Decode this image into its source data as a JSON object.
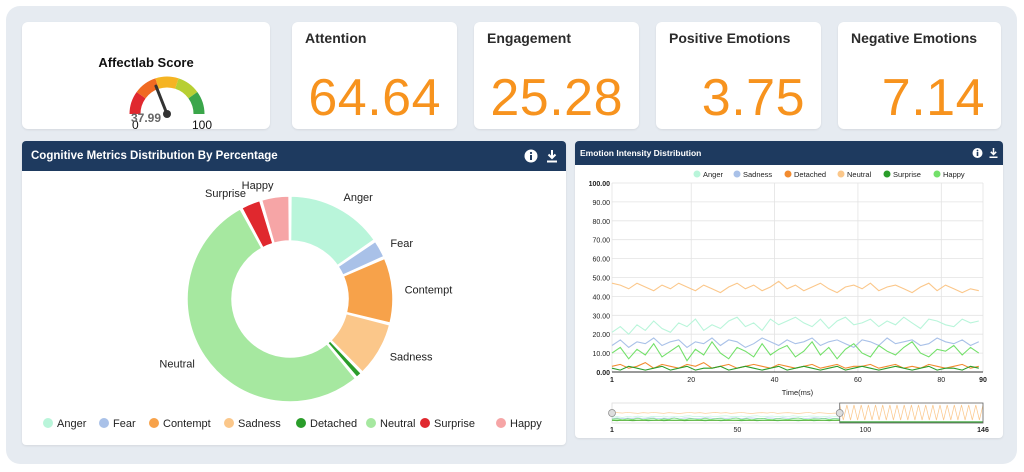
{
  "score_card": {
    "title": "Affectlab Score",
    "min": "0",
    "max": "100",
    "value": "37.99",
    "gauge_fraction": 0.38
  },
  "kpis": [
    {
      "title": "Attention",
      "value": "64.64"
    },
    {
      "title": "Engagement",
      "value": "25.28"
    },
    {
      "title": "Positive Emotions",
      "value": "3.75"
    },
    {
      "title": "Negative Emotions",
      "value": "7.14"
    }
  ],
  "donut_panel": {
    "title": "Cognitive Metrics Distribution By Percentage",
    "icons": [
      "info-icon",
      "download-icon"
    ]
  },
  "emotion_panel": {
    "title": "Emotion Intensity Distribution",
    "icons": [
      "info-icon",
      "download-icon"
    ]
  },
  "colors": {
    "header": "#1e3a5f",
    "accent": "#f7931e"
  },
  "chart_data": [
    {
      "type": "pie",
      "variant": "donut",
      "categories": [
        "Anger",
        "Fear",
        "Contempt",
        "Sadness",
        "Detached",
        "Neutral",
        "Surprise",
        "Happy"
      ],
      "values": [
        15.4,
        3.0,
        10.5,
        8.8,
        1.2,
        53.2,
        3.3,
        4.6
      ],
      "colors": [
        "#b9f5da",
        "#a9c1e8",
        "#f7a24a",
        "#fbc78a",
        "#2a9d2a",
        "#a6e8a0",
        "#e0282e",
        "#f6a5a6"
      ],
      "slice_labels": [
        "Anger",
        "Fear",
        "Contempt",
        "Sadness",
        "",
        "Neutral",
        "Surprise",
        "Happy"
      ],
      "legend": [
        "Anger",
        "Fear",
        "Contempt",
        "Sadness",
        "Detached",
        "Neutral",
        "Surprise",
        "Happy"
      ],
      "legend_position": "bottom"
    },
    {
      "type": "line",
      "x": [
        1,
        3,
        5,
        7,
        9,
        11,
        13,
        15,
        17,
        19,
        21,
        23,
        25,
        27,
        29,
        31,
        33,
        35,
        37,
        39,
        41,
        43,
        45,
        47,
        49,
        51,
        53,
        55,
        57,
        59,
        61,
        63,
        65,
        67,
        69,
        71,
        73,
        75,
        77,
        79,
        81,
        83,
        85,
        87,
        89
      ],
      "xlabel": "Time(ms)",
      "xticks": [
        "1",
        "20",
        "40",
        "60",
        "80",
        "90"
      ],
      "ylim": [
        0,
        100
      ],
      "yticks": [
        "100.00",
        "90.00",
        "80.00",
        "70.00",
        "60.00",
        "50.00",
        "40.00",
        "30.00",
        "20.00",
        "10.00",
        "0.00"
      ],
      "grid": true,
      "legend_position": "top",
      "series": [
        {
          "name": "Anger",
          "color": "#b9f5da",
          "values": [
            21,
            24,
            20,
            25,
            22,
            27,
            23,
            21,
            26,
            24,
            28,
            22,
            25,
            23,
            27,
            29,
            24,
            26,
            22,
            28,
            25,
            27,
            29,
            26,
            24,
            28,
            23,
            27,
            29,
            25,
            26,
            28,
            24,
            27,
            25,
            29,
            26,
            23,
            28,
            27,
            25,
            24,
            28,
            26,
            27
          ]
        },
        {
          "name": "Sadness",
          "color": "#a9c1e8",
          "values": [
            14,
            17,
            13,
            16,
            15,
            18,
            14,
            16,
            17,
            13,
            16,
            15,
            18,
            14,
            17,
            16,
            13,
            15,
            18,
            16,
            14,
            17,
            15,
            16,
            18,
            14,
            16,
            17,
            15,
            13,
            17,
            16,
            14,
            18,
            15,
            16,
            17,
            14,
            15,
            18,
            16,
            15,
            17,
            14,
            16
          ]
        },
        {
          "name": "Detached",
          "color": "#f28b30",
          "values": [
            3,
            4,
            2,
            3,
            5,
            2,
            4,
            3,
            2,
            4,
            3,
            5,
            2,
            3,
            4,
            2,
            3,
            4,
            3,
            2,
            4,
            3,
            2,
            3,
            4,
            2,
            3,
            4,
            2,
            3,
            3,
            4,
            2,
            3,
            4,
            2,
            3,
            2,
            4,
            3,
            2,
            3,
            4,
            2,
            3
          ]
        },
        {
          "name": "Neutral",
          "color": "#fbc78a",
          "values": [
            47,
            46,
            44,
            47,
            45,
            43,
            46,
            44,
            47,
            45,
            43,
            46,
            44,
            42,
            45,
            47,
            44,
            46,
            43,
            45,
            48,
            44,
            46,
            43,
            45,
            47,
            44,
            42,
            45,
            46,
            44,
            47,
            43,
            45,
            46,
            44,
            42,
            45,
            47,
            43,
            46,
            44,
            42,
            44,
            43
          ]
        },
        {
          "name": "Surprise",
          "color": "#2a9d2a",
          "values": [
            2,
            1,
            3,
            2,
            1,
            2,
            3,
            1,
            2,
            3,
            1,
            2,
            2,
            3,
            1,
            2,
            3,
            2,
            1,
            2,
            3,
            1,
            2,
            3,
            2,
            1,
            2,
            3,
            1,
            2,
            3,
            2,
            1,
            2,
            3,
            2,
            1,
            2,
            3,
            1,
            2,
            2,
            1,
            3,
            2
          ]
        },
        {
          "name": "Happy",
          "color": "#73e06a",
          "values": [
            10,
            13,
            7,
            12,
            9,
            15,
            8,
            11,
            14,
            6,
            12,
            9,
            16,
            10,
            7,
            13,
            11,
            8,
            15,
            9,
            12,
            14,
            8,
            11,
            16,
            9,
            13,
            7,
            12,
            15,
            10,
            8,
            14,
            11,
            9,
            13,
            16,
            10,
            8,
            12,
            11,
            14,
            9,
            13,
            10
          ]
        }
      ],
      "navigator": {
        "ticks": [
          "1",
          "50",
          "100",
          "146"
        ]
      }
    }
  ]
}
